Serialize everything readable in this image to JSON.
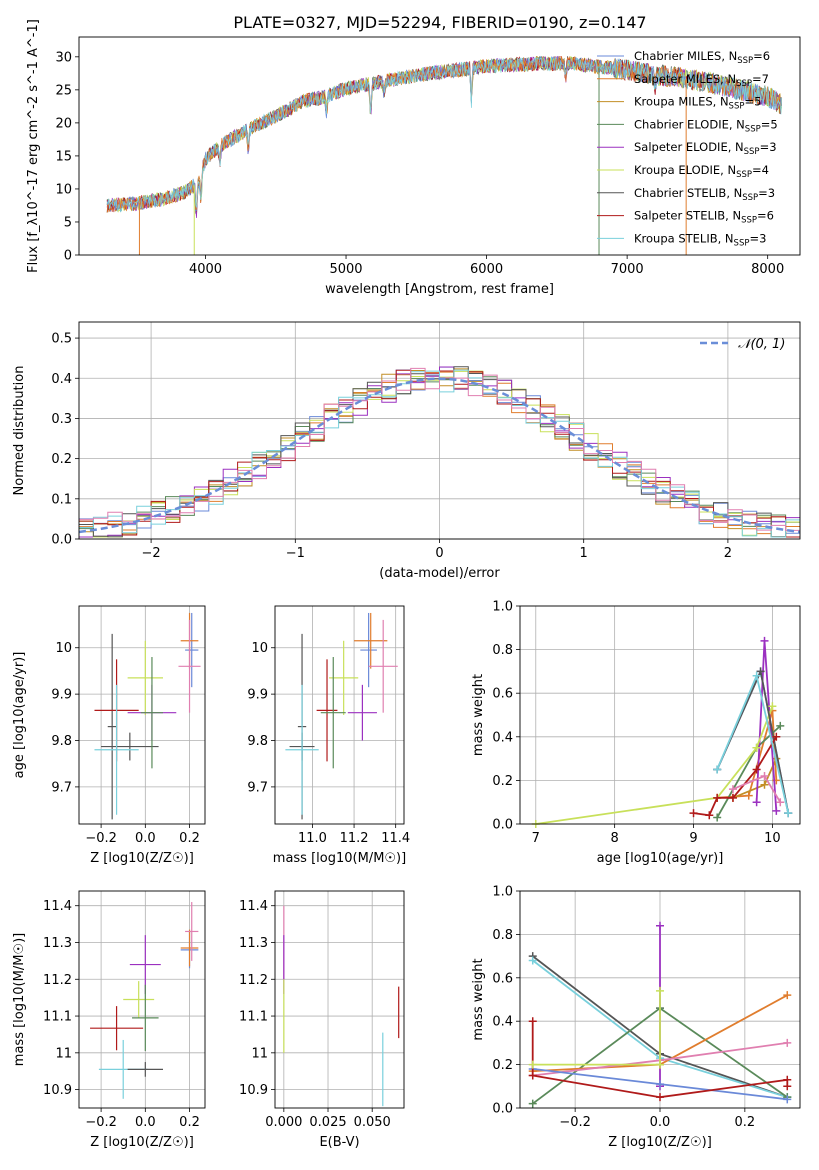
{
  "colors": {
    "series": [
      "#6a89d8",
      "#e07d2e",
      "#c28e25",
      "#5a8a5a",
      "#9b30c0",
      "#c8e05a",
      "#555555",
      "#b01a1a",
      "#79d0dc"
    ],
    "normal_curve": "#6a8ed8",
    "pink": "#e07fb0",
    "grid": "#b0b0b0"
  },
  "chart_data": [
    {
      "id": "spectrum",
      "type": "line",
      "title": "PLATE=0327, MJD=52294, FIBERID=0190, z=0.147",
      "xlabel": "wavelength [Angstrom, rest frame]",
      "ylabel": "Flux [f_λ10^-17 erg cm^-2 s^-1 A^-1]",
      "xlim": [
        3100,
        8230
      ],
      "ylim": [
        0,
        33
      ],
      "xticks": [
        4000,
        5000,
        6000,
        7000,
        8000
      ],
      "yticks": [
        0,
        5,
        10,
        15,
        20,
        25,
        30
      ],
      "grid": false,
      "legend_position": "top-right",
      "series": [
        {
          "name": "Chabrier MILES, N_SSP=6"
        },
        {
          "name": "Salpeter MILES, N_SSP=7"
        },
        {
          "name": "Kroupa MILES, N_SSP=5"
        },
        {
          "name": "Chabrier ELODIE, N_SSP=5"
        },
        {
          "name": "Salpeter ELODIE, N_SSP=3"
        },
        {
          "name": "Kroupa ELODIE, N_SSP=4"
        },
        {
          "name": "Chabrier STELIB, N_SSP=3"
        },
        {
          "name": "Salpeter STELIB, N_SSP=6"
        },
        {
          "name": "Kroupa STELIB, N_SSP=3"
        }
      ],
      "continuum": {
        "x": [
          3300,
          3500,
          3700,
          3850,
          3950,
          4000,
          4100,
          4300,
          4500,
          4700,
          4860,
          5000,
          5200,
          5400,
          5600,
          5800,
          6000,
          6200,
          6400,
          6600,
          6800,
          7000,
          7200,
          7400,
          7600,
          7800,
          8000,
          8100
        ],
        "y": [
          7.5,
          7.8,
          8.5,
          9.5,
          11,
          14.5,
          16.5,
          19,
          21,
          23.3,
          24,
          25.2,
          26,
          26.8,
          27.5,
          28,
          28.6,
          28.8,
          29,
          29,
          28.5,
          28,
          27.3,
          26.8,
          26,
          25,
          24,
          23.8
        ]
      }
    },
    {
      "id": "residuals",
      "type": "histogram",
      "xlabel": "(data-model)/error",
      "ylabel": "Normed distribution",
      "xlim": [
        -2.5,
        2.5
      ],
      "ylim": [
        0,
        0.54
      ],
      "xticks": [
        -2,
        -1,
        0,
        1,
        2
      ],
      "yticks": [
        0.0,
        0.1,
        0.2,
        0.3,
        0.4,
        0.5
      ],
      "grid": true,
      "legend_position": "top-right",
      "legend": "𝒩(0, 1)"
    },
    {
      "id": "age_vs_Z",
      "type": "errorbar",
      "xlabel": "Z [log10(Z/Z☉)]",
      "ylabel": "age [log10(age/yr)]",
      "xlim": [
        -0.3,
        0.27
      ],
      "ylim": [
        9.62,
        10.09
      ],
      "xticks": [
        -0.2,
        0.0,
        0.2
      ],
      "xticklabels": [
        "−0.2",
        "0.0",
        "0.2"
      ],
      "yticks": [
        9.7,
        9.8,
        9.9,
        10.0
      ],
      "grid": true,
      "points": [
        {
          "x": 0.21,
          "xerr": 0.03,
          "y": 9.995,
          "yerr": 0.08,
          "c": 0
        },
        {
          "x": 0.2,
          "xerr": 0.04,
          "y": 10.015,
          "yerr": 0.06,
          "c": 1
        },
        {
          "x": 0.0,
          "xerr": 0.08,
          "y": 9.935,
          "yerr": 0.08,
          "c": 5
        },
        {
          "x": 0.03,
          "xerr": 0.11,
          "y": 9.86,
          "yerr": 0.06,
          "c": 4
        },
        {
          "x": -0.15,
          "xerr": 0.02,
          "y": 9.83,
          "yerr": 0.2,
          "c": 6
        },
        {
          "x": -0.13,
          "xerr": 0.1,
          "y": 9.865,
          "yerr": 0.11,
          "c": 7
        },
        {
          "x": -0.07,
          "xerr": 0.13,
          "y": 9.787,
          "yerr": 0.03,
          "c": 6
        },
        {
          "x": 0.03,
          "xerr": 0.05,
          "y": 9.86,
          "yerr": 0.12,
          "c": 3
        },
        {
          "x": -0.13,
          "xerr": 0.1,
          "y": 9.78,
          "yerr": 0.14,
          "c": 8
        },
        {
          "x": 0.2,
          "xerr": 0.05,
          "y": 9.96,
          "yerr": 0.1,
          "c": 9
        }
      ]
    },
    {
      "id": "age_vs_mass",
      "type": "errorbar",
      "xlabel": "mass [log10(M/M☉)]",
      "xlim": [
        10.82,
        11.44
      ],
      "ylim": [
        9.62,
        10.09
      ],
      "xticks": [
        11.0,
        11.2,
        11.4
      ],
      "xticklabels": [
        "11.0",
        "11.2",
        "11.4"
      ],
      "yticks": [
        9.7,
        9.8,
        9.9,
        10.0
      ],
      "grid": true,
      "points": [
        {
          "x": 11.27,
          "xerr": 0.04,
          "y": 9.995,
          "yerr": 0.08,
          "c": 0
        },
        {
          "x": 11.28,
          "xerr": 0.08,
          "y": 10.015,
          "yerr": 0.06,
          "c": 1
        },
        {
          "x": 11.15,
          "xerr": 0.07,
          "y": 9.935,
          "yerr": 0.08,
          "c": 5
        },
        {
          "x": 11.24,
          "xerr": 0.07,
          "y": 9.86,
          "yerr": 0.06,
          "c": 4
        },
        {
          "x": 10.95,
          "xerr": 0.02,
          "y": 9.83,
          "yerr": 0.2,
          "c": 6
        },
        {
          "x": 11.07,
          "xerr": 0.05,
          "y": 9.865,
          "yerr": 0.11,
          "c": 7
        },
        {
          "x": 10.95,
          "xerr": 0.06,
          "y": 9.787,
          "yerr": 0.03,
          "c": 6
        },
        {
          "x": 11.1,
          "xerr": 0.06,
          "y": 9.86,
          "yerr": 0.12,
          "c": 3
        },
        {
          "x": 10.95,
          "xerr": 0.08,
          "y": 9.78,
          "yerr": 0.14,
          "c": 8
        },
        {
          "x": 11.34,
          "xerr": 0.07,
          "y": 9.96,
          "yerr": 0.1,
          "c": 9
        }
      ]
    },
    {
      "id": "weight_vs_age",
      "type": "line",
      "xlabel": "age [log10(age/yr)]",
      "ylabel": "mass weight",
      "xlim": [
        6.8,
        10.35
      ],
      "ylim": [
        0,
        1.0
      ],
      "xticks": [
        7,
        8,
        9,
        10
      ],
      "yticks": [
        0.0,
        0.2,
        0.4,
        0.6,
        0.8,
        1.0
      ],
      "grid": true,
      "series": [
        {
          "c": 0,
          "x": [
            9.3,
            9.85,
            10.2
          ],
          "y": [
            0.25,
            0.7,
            0.05
          ]
        },
        {
          "c": 1,
          "x": [
            9.3,
            9.7,
            10.0,
            10.05
          ],
          "y": [
            0.12,
            0.13,
            0.52,
            0.2
          ]
        },
        {
          "c": 2,
          "x": [
            9.5,
            9.9,
            10.05
          ],
          "y": [
            0.12,
            0.18,
            0.3
          ]
        },
        {
          "c": 3,
          "x": [
            9.3,
            9.8,
            10.1
          ],
          "y": [
            0.03,
            0.35,
            0.45
          ]
        },
        {
          "c": 4,
          "x": [
            9.8,
            9.9,
            10.05
          ],
          "y": [
            0.1,
            0.84,
            0.06
          ]
        },
        {
          "c": 5,
          "x": [
            7.0,
            9.3,
            9.8,
            10.0
          ],
          "y": [
            0.0,
            0.12,
            0.35,
            0.54
          ]
        },
        {
          "c": 6,
          "x": [
            9.3,
            9.85,
            10.2
          ],
          "y": [
            0.25,
            0.7,
            0.05
          ]
        },
        {
          "c": 7,
          "x": [
            9.0,
            9.2,
            9.3,
            9.5,
            9.8,
            10.05
          ],
          "y": [
            0.05,
            0.04,
            0.12,
            0.12,
            0.25,
            0.4
          ]
        },
        {
          "c": 8,
          "x": [
            9.3,
            9.8,
            10.2
          ],
          "y": [
            0.25,
            0.68,
            0.05
          ]
        },
        {
          "c": 9,
          "x": [
            9.5,
            9.9,
            10.1
          ],
          "y": [
            0.16,
            0.22,
            0.1
          ]
        }
      ]
    },
    {
      "id": "mass_vs_Z",
      "type": "errorbar",
      "xlabel": "Z [log10(Z/Z☉)]",
      "ylabel": "mass [log10(M/M☉)]",
      "xlim": [
        -0.3,
        0.27
      ],
      "ylim": [
        10.85,
        11.44
      ],
      "xticks": [
        -0.2,
        0.0,
        0.2
      ],
      "xticklabels": [
        "−0.2",
        "0.0",
        "0.2"
      ],
      "yticks": [
        10.9,
        11.0,
        11.1,
        11.2,
        11.3,
        11.4
      ],
      "grid": true,
      "points": [
        {
          "x": 0.2,
          "xerr": 0.04,
          "y": 11.28,
          "yerr": 0.05,
          "c": 0
        },
        {
          "x": 0.2,
          "xerr": 0.04,
          "y": 11.285,
          "yerr": 0.05,
          "c": 1
        },
        {
          "x": 0.21,
          "xerr": 0.03,
          "y": 11.33,
          "yerr": 0.08,
          "c": 9
        },
        {
          "x": 0.0,
          "xerr": 0.07,
          "y": 11.24,
          "yerr": 0.08,
          "c": 4
        },
        {
          "x": -0.03,
          "xerr": 0.07,
          "y": 11.145,
          "yerr": 0.05,
          "c": 5
        },
        {
          "x": 0.0,
          "xerr": 0.06,
          "y": 11.095,
          "yerr": 0.09,
          "c": 3
        },
        {
          "x": -0.13,
          "xerr": 0.12,
          "y": 11.067,
          "yerr": 0.06,
          "c": 7
        },
        {
          "x": -0.1,
          "xerr": 0.11,
          "y": 10.955,
          "yerr": 0.08,
          "c": 8
        },
        {
          "x": 0.0,
          "xerr": 0.08,
          "y": 10.955,
          "yerr": 0.02,
          "c": 6
        }
      ]
    },
    {
      "id": "mass_vs_ebv",
      "type": "errorbar",
      "xlabel": "E(B-V)",
      "xlim": [
        -0.005,
        0.068
      ],
      "ylim": [
        10.85,
        11.44
      ],
      "xticks": [
        0.0,
        0.025,
        0.05
      ],
      "xticklabels": [
        "0.000",
        "0.025",
        "0.050"
      ],
      "yticks": [
        10.9,
        11.0,
        11.1,
        11.2,
        11.3,
        11.4
      ],
      "grid": true,
      "points": [
        {
          "x": 0.0,
          "xerr": 0,
          "y": 11.3,
          "yerr": 0.1,
          "c": 9
        },
        {
          "x": 0.0,
          "xerr": 0,
          "y": 11.24,
          "yerr": 0.08,
          "c": 4
        },
        {
          "x": 0.0,
          "xerr": 0,
          "y": 11.1,
          "yerr": 0.1,
          "c": 5
        },
        {
          "x": 0.056,
          "xerr": 0,
          "y": 10.955,
          "yerr": 0.1,
          "c": 8
        },
        {
          "x": 0.065,
          "xerr": 0,
          "y": 11.11,
          "yerr": 0.07,
          "c": 7
        }
      ]
    },
    {
      "id": "weight_vs_Z",
      "type": "line",
      "xlabel": "Z [log10(Z/Z☉)]",
      "ylabel": "mass weight",
      "xlim": [
        -0.33,
        0.33
      ],
      "ylim": [
        0,
        1.0
      ],
      "xticks": [
        -0.2,
        0.0,
        0.2
      ],
      "xticklabels": [
        "−0.2",
        "0.0",
        "0.2"
      ],
      "yticks": [
        0.0,
        0.2,
        0.4,
        0.6,
        0.8,
        1.0
      ],
      "grid": true,
      "series": [
        {
          "c": 6,
          "x": [
            -0.3,
            0.0,
            0.3
          ],
          "y": [
            0.7,
            0.25,
            0.05
          ]
        },
        {
          "c": 8,
          "x": [
            -0.3,
            0.0,
            0.3
          ],
          "y": [
            0.68,
            0.23,
            0.05
          ]
        },
        {
          "c": 4,
          "x": [
            0.0,
            0.0,
            0.0
          ],
          "y": [
            0.84,
            0.46,
            0.1
          ]
        },
        {
          "c": 3,
          "x": [
            -0.3,
            0.0,
            0.3
          ],
          "y": [
            0.02,
            0.46,
            0.05
          ]
        },
        {
          "c": 1,
          "x": [
            -0.3,
            0.0,
            0.3
          ],
          "y": [
            0.17,
            0.2,
            0.52
          ]
        },
        {
          "c": 9,
          "x": [
            -0.3,
            0.0,
            0.3
          ],
          "y": [
            0.15,
            0.22,
            0.3
          ]
        },
        {
          "c": 0,
          "x": [
            -0.3,
            0.0,
            0.3
          ],
          "y": [
            0.18,
            0.11,
            0.04
          ]
        },
        {
          "c": 7,
          "x": [
            -0.3,
            -0.3,
            0.0,
            0.3,
            0.3
          ],
          "y": [
            0.4,
            0.15,
            0.05,
            0.13,
            0.1
          ]
        },
        {
          "c": 5,
          "x": [
            -0.3,
            0.0,
            0.0
          ],
          "y": [
            0.2,
            0.2,
            0.54
          ]
        }
      ]
    }
  ]
}
